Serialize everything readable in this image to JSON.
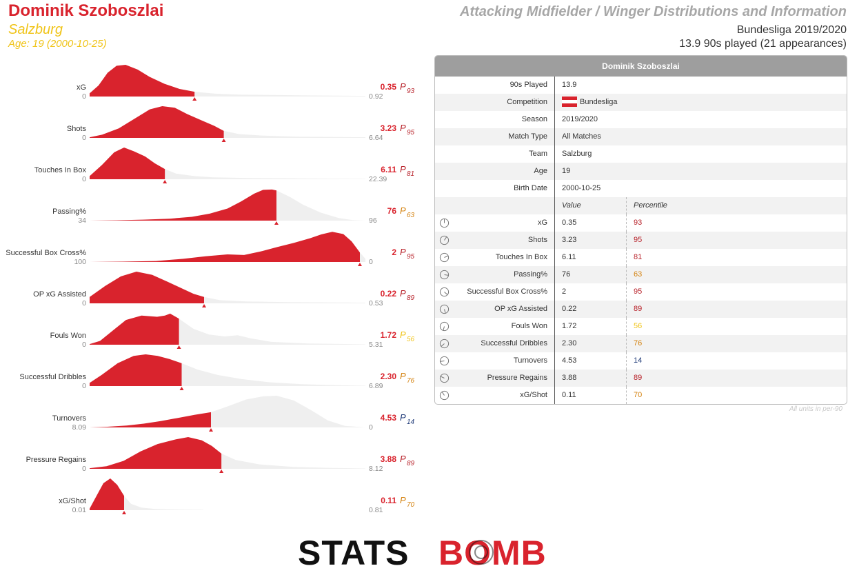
{
  "header": {
    "player_name": "Dominik Szoboszlai",
    "team": "Salzburg",
    "age_text": "Age: 19 (2000-10-25)",
    "title": "Attacking Midfielder / Winger Distributions and Information",
    "league_season": "Bundesliga 2019/2020",
    "played_text": "13.9 90s played (21 appearances)"
  },
  "colors": {
    "accent_red": "#d9232d",
    "dark_red": "#b8232b",
    "yellow": "#f0c419",
    "orange": "#d4820f",
    "navy": "#1f3a78",
    "distribution_grey": "#efefef"
  },
  "chart_data": {
    "type": "area",
    "description_type": "per-metric distribution (density) curves with player value marker",
    "metrics": [
      {
        "label": "xG",
        "value": 0.35,
        "value_text": "0.35",
        "percentile": 93,
        "axis_min": "0",
        "axis_max": "0.92",
        "reversed": false,
        "density": [
          [
            0,
            0.1
          ],
          [
            0.03,
            0.35
          ],
          [
            0.06,
            0.75
          ],
          [
            0.09,
            0.97
          ],
          [
            0.12,
            1.0
          ],
          [
            0.16,
            0.85
          ],
          [
            0.2,
            0.62
          ],
          [
            0.25,
            0.4
          ],
          [
            0.3,
            0.24
          ],
          [
            0.35,
            0.15
          ],
          [
            0.42,
            0.09
          ],
          [
            0.5,
            0.06
          ],
          [
            0.6,
            0.05
          ],
          [
            0.7,
            0.04
          ],
          [
            0.8,
            0.03
          ],
          [
            0.92,
            0.02
          ]
        ]
      },
      {
        "label": "Shots",
        "value": 3.23,
        "value_text": "3.23",
        "percentile": 95,
        "axis_min": "0",
        "axis_max": "6.64",
        "reversed": false,
        "density": [
          [
            0,
            0.02
          ],
          [
            0.3,
            0.1
          ],
          [
            0.7,
            0.3
          ],
          [
            1.1,
            0.62
          ],
          [
            1.45,
            0.9
          ],
          [
            1.75,
            1.0
          ],
          [
            2.05,
            0.95
          ],
          [
            2.35,
            0.75
          ],
          [
            2.7,
            0.55
          ],
          [
            3.0,
            0.38
          ],
          [
            3.23,
            0.22
          ],
          [
            3.6,
            0.12
          ],
          [
            4.2,
            0.07
          ],
          [
            5.0,
            0.04
          ],
          [
            5.8,
            0.03
          ],
          [
            6.64,
            0.02
          ]
        ]
      },
      {
        "label": "Touches In Box",
        "value": 6.11,
        "value_text": "6.11",
        "percentile": 81,
        "axis_min": "0",
        "axis_max": "22.39",
        "reversed": false,
        "density": [
          [
            0,
            0.1
          ],
          [
            1,
            0.45
          ],
          [
            2,
            0.85
          ],
          [
            2.8,
            1.0
          ],
          [
            3.6,
            0.88
          ],
          [
            4.5,
            0.72
          ],
          [
            5.3,
            0.5
          ],
          [
            6.11,
            0.32
          ],
          [
            7,
            0.18
          ],
          [
            8.5,
            0.1
          ],
          [
            10,
            0.06
          ],
          [
            13,
            0.04
          ],
          [
            16,
            0.03
          ],
          [
            19,
            0.02
          ],
          [
            22.39,
            0.01
          ]
        ]
      },
      {
        "label": "Passing%",
        "value": 76,
        "value_text": "76",
        "percentile": 63,
        "axis_min": "34",
        "axis_max": "96",
        "reversed": false,
        "density": [
          [
            34,
            0.0
          ],
          [
            40,
            0.01
          ],
          [
            46,
            0.03
          ],
          [
            52,
            0.06
          ],
          [
            57,
            0.12
          ],
          [
            61,
            0.22
          ],
          [
            65,
            0.38
          ],
          [
            68,
            0.6
          ],
          [
            71,
            0.85
          ],
          [
            73,
            0.97
          ],
          [
            75,
            0.98
          ],
          [
            76,
            0.95
          ],
          [
            79,
            0.75
          ],
          [
            82,
            0.5
          ],
          [
            86,
            0.25
          ],
          [
            90,
            0.08
          ],
          [
            93,
            0.02
          ],
          [
            96,
            0.0
          ]
        ]
      },
      {
        "label": "Successful Box Cross%",
        "value": 2,
        "value_text": "2",
        "percentile": 95,
        "axis_min": "100",
        "axis_max": "0",
        "reversed": true,
        "density": [
          [
            100,
            0.0
          ],
          [
            88,
            0.01
          ],
          [
            76,
            0.03
          ],
          [
            66,
            0.1
          ],
          [
            58,
            0.18
          ],
          [
            50,
            0.24
          ],
          [
            44,
            0.22
          ],
          [
            38,
            0.33
          ],
          [
            32,
            0.47
          ],
          [
            26,
            0.6
          ],
          [
            20,
            0.75
          ],
          [
            16,
            0.87
          ],
          [
            12,
            0.95
          ],
          [
            8,
            0.88
          ],
          [
            5,
            0.65
          ],
          [
            2,
            0.3
          ],
          [
            1,
            0.2
          ],
          [
            0,
            0.1
          ]
        ]
      },
      {
        "label": "OP xG Assisted",
        "value": 0.22,
        "value_text": "0.22",
        "percentile": 89,
        "axis_min": "0",
        "axis_max": "0.53",
        "reversed": false,
        "density": [
          [
            0,
            0.2
          ],
          [
            0.03,
            0.55
          ],
          [
            0.06,
            0.85
          ],
          [
            0.09,
            1.0
          ],
          [
            0.12,
            0.9
          ],
          [
            0.15,
            0.68
          ],
          [
            0.18,
            0.45
          ],
          [
            0.2,
            0.3
          ],
          [
            0.22,
            0.2
          ],
          [
            0.25,
            0.1
          ],
          [
            0.3,
            0.06
          ],
          [
            0.38,
            0.04
          ],
          [
            0.45,
            0.03
          ],
          [
            0.53,
            0.02
          ]
        ]
      },
      {
        "label": "Fouls Won",
        "value": 1.72,
        "value_text": "1.72",
        "percentile": 56,
        "axis_min": "0",
        "axis_max": "5.31",
        "reversed": false,
        "density": [
          [
            0,
            0.02
          ],
          [
            0.2,
            0.12
          ],
          [
            0.45,
            0.45
          ],
          [
            0.7,
            0.78
          ],
          [
            1.0,
            0.92
          ],
          [
            1.3,
            0.88
          ],
          [
            1.45,
            0.92
          ],
          [
            1.55,
            0.98
          ],
          [
            1.72,
            0.82
          ],
          [
            2.0,
            0.5
          ],
          [
            2.3,
            0.32
          ],
          [
            2.6,
            0.26
          ],
          [
            2.85,
            0.3
          ],
          [
            3.1,
            0.2
          ],
          [
            3.5,
            0.09
          ],
          [
            4.2,
            0.04
          ],
          [
            5.31,
            0.01
          ]
        ]
      },
      {
        "label": "Successful Dribbles",
        "value": 2.3,
        "value_text": "2.30",
        "percentile": 76,
        "axis_min": "0",
        "axis_max": "6.89",
        "reversed": false,
        "density": [
          [
            0,
            0.1
          ],
          [
            0.3,
            0.35
          ],
          [
            0.7,
            0.72
          ],
          [
            1.1,
            0.95
          ],
          [
            1.4,
            1.0
          ],
          [
            1.7,
            0.95
          ],
          [
            2.0,
            0.85
          ],
          [
            2.3,
            0.72
          ],
          [
            2.7,
            0.52
          ],
          [
            3.2,
            0.35
          ],
          [
            3.8,
            0.22
          ],
          [
            4.5,
            0.12
          ],
          [
            5.3,
            0.06
          ],
          [
            6.1,
            0.03
          ],
          [
            6.89,
            0.01
          ]
        ]
      },
      {
        "label": "Turnovers",
        "value": 4.53,
        "value_text": "4.53",
        "percentile": 14,
        "axis_min": "8.09",
        "axis_max": "0",
        "reversed": true,
        "density": [
          [
            8.09,
            0.0
          ],
          [
            7.6,
            0.02
          ],
          [
            7.0,
            0.06
          ],
          [
            6.5,
            0.12
          ],
          [
            6.0,
            0.2
          ],
          [
            5.5,
            0.3
          ],
          [
            5.0,
            0.4
          ],
          [
            4.53,
            0.48
          ],
          [
            4.0,
            0.68
          ],
          [
            3.5,
            0.88
          ],
          [
            3.0,
            0.98
          ],
          [
            2.6,
            1.0
          ],
          [
            2.1,
            0.85
          ],
          [
            1.6,
            0.55
          ],
          [
            1.1,
            0.22
          ],
          [
            0.6,
            0.05
          ],
          [
            0,
            0.0
          ]
        ]
      },
      {
        "label": "Pressure Regains",
        "value": 3.88,
        "value_text": "3.88",
        "percentile": 89,
        "axis_min": "0",
        "axis_max": "8.12",
        "reversed": false,
        "density": [
          [
            0,
            0.02
          ],
          [
            0.5,
            0.08
          ],
          [
            1.0,
            0.25
          ],
          [
            1.5,
            0.55
          ],
          [
            2.0,
            0.78
          ],
          [
            2.5,
            0.92
          ],
          [
            2.9,
            1.0
          ],
          [
            3.3,
            0.9
          ],
          [
            3.6,
            0.72
          ],
          [
            3.88,
            0.48
          ],
          [
            4.3,
            0.28
          ],
          [
            5.0,
            0.14
          ],
          [
            6.0,
            0.06
          ],
          [
            7.0,
            0.03
          ],
          [
            8.12,
            0.01
          ]
        ]
      },
      {
        "label": "xG/Shot",
        "value": 0.11,
        "value_text": "0.11",
        "percentile": 70,
        "axis_min": "0.01",
        "axis_max": "0.81",
        "reversed": false,
        "density": [
          [
            0.01,
            0.05
          ],
          [
            0.03,
            0.45
          ],
          [
            0.05,
            0.85
          ],
          [
            0.07,
            1.0
          ],
          [
            0.09,
            0.8
          ],
          [
            0.11,
            0.45
          ],
          [
            0.13,
            0.2
          ],
          [
            0.16,
            0.08
          ],
          [
            0.2,
            0.04
          ],
          [
            0.26,
            0.02
          ],
          [
            0.34,
            0.01
          ]
        ]
      }
    ]
  },
  "table": {
    "header": "Dominik Szoboszlai",
    "info_rows": [
      {
        "label": "90s Played",
        "value": "13.9"
      },
      {
        "label": "Competition",
        "value": "Bundesliga",
        "flag": true
      },
      {
        "label": "Season",
        "value": "2019/2020"
      },
      {
        "label": "Match Type",
        "value": "All Matches"
      },
      {
        "label": "Team",
        "value": "Salzburg"
      },
      {
        "label": "Age",
        "value": "19"
      },
      {
        "label": "Birth Date",
        "value": "2000-10-25"
      }
    ],
    "col_value": "Value",
    "col_percentile": "Percentile",
    "stat_rows": [
      {
        "label": "xG",
        "value": "0.35",
        "percentile": "93",
        "icon_angle": 0
      },
      {
        "label": "Shots",
        "value": "3.23",
        "percentile": "95",
        "icon_angle": 33
      },
      {
        "label": "Touches In Box",
        "value": "6.11",
        "percentile": "81",
        "icon_angle": 65
      },
      {
        "label": "Passing%",
        "value": "76",
        "percentile": "63",
        "icon_angle": 98
      },
      {
        "label": "Successful Box Cross%",
        "value": "2",
        "percentile": "95",
        "icon_angle": 131
      },
      {
        "label": "OP xG Assisted",
        "value": "0.22",
        "percentile": "89",
        "icon_angle": 164
      },
      {
        "label": "Fouls Won",
        "value": "1.72",
        "percentile": "56",
        "icon_angle": 196
      },
      {
        "label": "Successful Dribbles",
        "value": "2.30",
        "percentile": "76",
        "icon_angle": 229
      },
      {
        "label": "Turnovers",
        "value": "4.53",
        "percentile": "14",
        "icon_angle": 262
      },
      {
        "label": "Pressure Regains",
        "value": "3.88",
        "percentile": "89",
        "icon_angle": 295
      },
      {
        "label": "xG/Shot",
        "value": "0.11",
        "percentile": "70",
        "icon_angle": 327
      }
    ],
    "units_note": "All units in per-90"
  },
  "logo": {
    "part1": "STATS",
    "part2": "BOMB"
  }
}
